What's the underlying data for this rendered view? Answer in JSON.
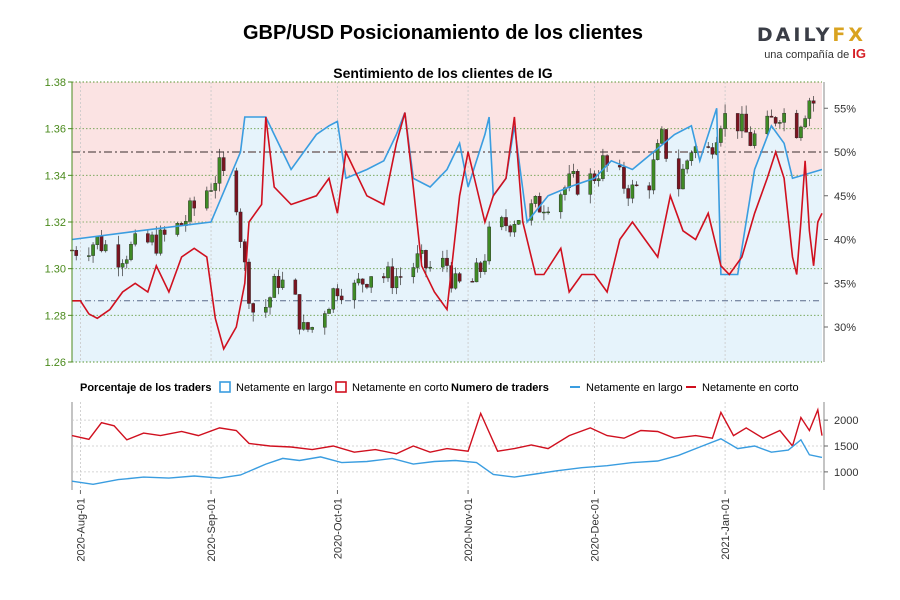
{
  "title": "GBP/USD Posicionamiento de los clientes",
  "subtitle": "Sentimiento de los clientes de IG",
  "logo": {
    "word_main": "DAILY",
    "word_fx": "FX",
    "tagline": "una compañía de",
    "brand": "IG"
  },
  "colors": {
    "long": "#3a9de0",
    "short": "#d0101f",
    "long_fill": "#e6f3fb",
    "short_fill": "#fbe3e3",
    "candle_up": "#3f8a25",
    "candle_down": "#7a1420",
    "left_axis": "#4a8a1c",
    "grid": "#c8c8c8"
  },
  "legend": {
    "pct_title": "Porcentaje de los traders",
    "pct_long": "Netamente en largo",
    "pct_short": "Netamente en corto",
    "num_title": "Numero de traders",
    "num_long": "Netamente en largo",
    "num_short": "Netamente en corto"
  },
  "chart_data": {
    "type": "line",
    "x_range": [
      "2020-07-30",
      "2021-01-24"
    ],
    "x_ticks": [
      "2020-Aug-01",
      "2020-Sep-01",
      "2020-Oct-01",
      "2020-Nov-01",
      "2020-Dec-01",
      "2021-Jan-01"
    ],
    "price_axis": {
      "ticks": [
        "1.26",
        "1.28",
        "1.30",
        "1.32",
        "1.34",
        "1.36",
        "1.38"
      ],
      "ylim": [
        1.26,
        1.38
      ]
    },
    "percent_axis": {
      "ticks": [
        "30%",
        "35%",
        "40%",
        "45%",
        "50%",
        "55%"
      ],
      "ylim": [
        26,
        58
      ]
    },
    "count_axis": {
      "ticks": [
        "1000",
        "1500",
        "2000"
      ],
      "ylim": [
        650,
        2350
      ]
    },
    "reference_lines": {
      "dashed_percent": 50,
      "dashdot_percent": 33
    },
    "price_close": [
      [
        "2020-07-30",
        1.308
      ],
      [
        "2020-08-05",
        1.312
      ],
      [
        "2020-08-10",
        1.306
      ],
      [
        "2020-08-15",
        1.31
      ],
      [
        "2020-08-20",
        1.312
      ],
      [
        "2020-08-25",
        1.319
      ],
      [
        "2020-08-28",
        1.326
      ],
      [
        "2020-08-31",
        1.334
      ],
      [
        "2020-09-03",
        1.342
      ],
      [
        "2020-09-07",
        1.33
      ],
      [
        "2020-09-09",
        1.3
      ],
      [
        "2020-09-11",
        1.282
      ],
      [
        "2020-09-14",
        1.284
      ],
      [
        "2020-09-17",
        1.296
      ],
      [
        "2020-09-21",
        1.285
      ],
      [
        "2020-09-23",
        1.273
      ],
      [
        "2020-09-25",
        1.275
      ],
      [
        "2020-09-28",
        1.284
      ],
      [
        "2020-10-01",
        1.293
      ],
      [
        "2020-10-05",
        1.291
      ],
      [
        "2020-10-09",
        1.299
      ],
      [
        "2020-10-13",
        1.296
      ],
      [
        "2020-10-16",
        1.297
      ],
      [
        "2020-10-20",
        1.303
      ],
      [
        "2020-10-23",
        1.3
      ],
      [
        "2020-10-27",
        1.302
      ],
      [
        "2020-10-29",
        1.292
      ],
      [
        "2020-11-02",
        1.294
      ],
      [
        "2020-11-04",
        1.3
      ],
      [
        "2020-11-06",
        1.313
      ],
      [
        "2020-11-09",
        1.318
      ],
      [
        "2020-11-12",
        1.322
      ],
      [
        "2020-11-16",
        1.325
      ],
      [
        "2020-11-20",
        1.33
      ],
      [
        "2020-11-25",
        1.336
      ],
      [
        "2020-11-30",
        1.338
      ],
      [
        "2020-12-03",
        1.345
      ],
      [
        "2020-12-07",
        1.338
      ],
      [
        "2020-12-10",
        1.333
      ],
      [
        "2020-12-14",
        1.338
      ],
      [
        "2020-12-17",
        1.355
      ],
      [
        "2020-12-21",
        1.336
      ],
      [
        "2020-12-24",
        1.352
      ],
      [
        "2020-12-28",
        1.35
      ],
      [
        "2020-12-31",
        1.365
      ],
      [
        "2021-01-04",
        1.363
      ],
      [
        "2021-01-07",
        1.355
      ],
      [
        "2021-01-11",
        1.36
      ],
      [
        "2021-01-14",
        1.368
      ],
      [
        "2021-01-18",
        1.361
      ],
      [
        "2021-01-21",
        1.373
      ],
      [
        "2021-01-24",
        1.368
      ]
    ],
    "series": [
      {
        "name": "Netamente en largo",
        "measure": "percent",
        "points": [
          [
            "2020-07-30",
            40
          ],
          [
            "2020-08-15",
            41
          ],
          [
            "2020-09-01",
            42
          ],
          [
            "2020-09-08",
            50
          ],
          [
            "2020-09-09",
            54
          ],
          [
            "2020-09-14",
            54
          ],
          [
            "2020-09-16",
            52
          ],
          [
            "2020-09-20",
            48
          ],
          [
            "2020-09-26",
            52
          ],
          [
            "2020-09-29",
            53
          ],
          [
            "2020-10-01",
            53.5
          ],
          [
            "2020-10-03",
            47
          ],
          [
            "2020-10-08",
            48
          ],
          [
            "2020-10-12",
            49
          ],
          [
            "2020-10-15",
            52
          ],
          [
            "2020-10-17",
            54.5
          ],
          [
            "2020-10-19",
            47
          ],
          [
            "2020-10-23",
            46
          ],
          [
            "2020-10-27",
            48
          ],
          [
            "2020-10-30",
            51
          ],
          [
            "2020-11-01",
            46
          ],
          [
            "2020-11-05",
            52
          ],
          [
            "2020-11-06",
            54
          ],
          [
            "2020-11-07",
            45
          ],
          [
            "2020-11-10",
            47
          ],
          [
            "2020-11-12",
            53
          ],
          [
            "2020-11-15",
            42
          ],
          [
            "2020-11-20",
            45
          ],
          [
            "2020-11-25",
            46
          ],
          [
            "2020-12-01",
            47
          ],
          [
            "2020-12-05",
            49
          ],
          [
            "2020-12-10",
            48
          ],
          [
            "2020-12-15",
            50
          ],
          [
            "2020-12-20",
            52
          ],
          [
            "2020-12-24",
            53
          ],
          [
            "2020-12-26",
            49
          ],
          [
            "2020-12-30",
            55
          ],
          [
            "2020-12-31",
            36
          ],
          [
            "2021-01-04",
            36
          ],
          [
            "2021-01-08",
            48
          ],
          [
            "2021-01-12",
            53
          ],
          [
            "2021-01-15",
            51
          ],
          [
            "2021-01-17",
            47
          ],
          [
            "2021-01-24",
            48
          ]
        ]
      },
      {
        "name": "Netamente en corto",
        "measure": "percent",
        "points": [
          [
            "2020-07-30",
            33
          ],
          [
            "2020-08-01",
            33
          ],
          [
            "2020-08-03",
            31.5
          ],
          [
            "2020-08-05",
            31
          ],
          [
            "2020-08-08",
            32
          ],
          [
            "2020-08-11",
            34
          ],
          [
            "2020-08-14",
            35
          ],
          [
            "2020-08-17",
            34
          ],
          [
            "2020-08-19",
            37
          ],
          [
            "2020-08-22",
            34
          ],
          [
            "2020-08-25",
            38
          ],
          [
            "2020-08-28",
            39
          ],
          [
            "2020-08-31",
            38
          ],
          [
            "2020-09-02",
            31
          ],
          [
            "2020-09-04",
            27.5
          ],
          [
            "2020-09-07",
            30
          ],
          [
            "2020-09-09",
            35
          ],
          [
            "2020-09-10",
            42
          ],
          [
            "2020-09-13",
            44
          ],
          [
            "2020-09-14",
            54
          ],
          [
            "2020-09-16",
            46
          ],
          [
            "2020-09-20",
            44
          ],
          [
            "2020-09-26",
            45
          ],
          [
            "2020-09-29",
            47
          ],
          [
            "2020-10-01",
            43
          ],
          [
            "2020-10-03",
            50
          ],
          [
            "2020-10-08",
            45
          ],
          [
            "2020-10-12",
            44
          ],
          [
            "2020-10-15",
            51
          ],
          [
            "2020-10-17",
            54.5
          ],
          [
            "2020-10-19",
            46
          ],
          [
            "2020-10-21",
            37
          ],
          [
            "2020-10-24",
            34
          ],
          [
            "2020-10-27",
            32
          ],
          [
            "2020-10-30",
            45
          ],
          [
            "2020-11-01",
            50
          ],
          [
            "2020-11-03",
            46
          ],
          [
            "2020-11-05",
            42
          ],
          [
            "2020-11-07",
            45
          ],
          [
            "2020-11-10",
            47
          ],
          [
            "2020-11-12",
            54
          ],
          [
            "2020-11-14",
            42
          ],
          [
            "2020-11-17",
            36
          ],
          [
            "2020-11-19",
            36
          ],
          [
            "2020-11-23",
            39
          ],
          [
            "2020-11-25",
            34
          ],
          [
            "2020-11-28",
            36
          ],
          [
            "2020-12-01",
            36
          ],
          [
            "2020-12-04",
            34
          ],
          [
            "2020-12-07",
            40
          ],
          [
            "2020-12-10",
            42
          ],
          [
            "2020-12-13",
            40
          ],
          [
            "2020-12-16",
            38
          ],
          [
            "2020-12-19",
            45
          ],
          [
            "2020-12-22",
            41
          ],
          [
            "2020-12-25",
            40
          ],
          [
            "2020-12-28",
            43
          ],
          [
            "2020-12-31",
            37
          ],
          [
            "2021-01-02",
            36
          ],
          [
            "2021-01-05",
            38
          ],
          [
            "2021-01-08",
            43
          ],
          [
            "2021-01-11",
            47
          ],
          [
            "2021-01-13",
            50
          ],
          [
            "2021-01-15",
            47
          ],
          [
            "2021-01-17",
            38
          ],
          [
            "2021-01-18",
            36
          ],
          [
            "2021-01-19",
            42
          ],
          [
            "2021-01-20",
            49
          ],
          [
            "2021-01-21",
            41
          ],
          [
            "2021-01-22",
            37
          ],
          [
            "2021-01-23",
            42
          ],
          [
            "2021-01-24",
            43
          ]
        ]
      },
      {
        "name": "Netamente en largo",
        "measure": "count",
        "points": [
          [
            "2020-07-30",
            820
          ],
          [
            "2020-08-04",
            760
          ],
          [
            "2020-08-10",
            850
          ],
          [
            "2020-08-16",
            900
          ],
          [
            "2020-08-22",
            880
          ],
          [
            "2020-08-28",
            920
          ],
          [
            "2020-09-03",
            880
          ],
          [
            "2020-09-08",
            940
          ],
          [
            "2020-09-14",
            1150
          ],
          [
            "2020-09-18",
            1260
          ],
          [
            "2020-09-22",
            1220
          ],
          [
            "2020-09-27",
            1290
          ],
          [
            "2020-10-02",
            1180
          ],
          [
            "2020-10-08",
            1200
          ],
          [
            "2020-10-14",
            1260
          ],
          [
            "2020-10-19",
            1150
          ],
          [
            "2020-10-24",
            1200
          ],
          [
            "2020-10-29",
            1220
          ],
          [
            "2020-11-03",
            1180
          ],
          [
            "2020-11-07",
            950
          ],
          [
            "2020-11-12",
            900
          ],
          [
            "2020-11-17",
            960
          ],
          [
            "2020-11-22",
            1020
          ],
          [
            "2020-11-28",
            1080
          ],
          [
            "2020-12-04",
            1120
          ],
          [
            "2020-12-10",
            1180
          ],
          [
            "2020-12-16",
            1210
          ],
          [
            "2020-12-21",
            1320
          ],
          [
            "2020-12-26",
            1480
          ],
          [
            "2020-12-31",
            1640
          ],
          [
            "2021-01-04",
            1450
          ],
          [
            "2021-01-08",
            1500
          ],
          [
            "2021-01-12",
            1380
          ],
          [
            "2021-01-16",
            1420
          ],
          [
            "2021-01-19",
            1620
          ],
          [
            "2021-01-21",
            1330
          ],
          [
            "2021-01-24",
            1280
          ]
        ]
      },
      {
        "name": "Netamente en corto",
        "measure": "count",
        "points": [
          [
            "2020-07-30",
            1700
          ],
          [
            "2020-08-03",
            1630
          ],
          [
            "2020-08-06",
            1950
          ],
          [
            "2020-08-09",
            1890
          ],
          [
            "2020-08-12",
            1620
          ],
          [
            "2020-08-16",
            1750
          ],
          [
            "2020-08-20",
            1700
          ],
          [
            "2020-08-25",
            1780
          ],
          [
            "2020-08-29",
            1700
          ],
          [
            "2020-09-03",
            1850
          ],
          [
            "2020-09-07",
            1800
          ],
          [
            "2020-09-10",
            1550
          ],
          [
            "2020-09-15",
            1500
          ],
          [
            "2020-09-20",
            1480
          ],
          [
            "2020-09-25",
            1430
          ],
          [
            "2020-09-30",
            1500
          ],
          [
            "2020-10-05",
            1380
          ],
          [
            "2020-10-10",
            1430
          ],
          [
            "2020-10-15",
            1350
          ],
          [
            "2020-10-19",
            1500
          ],
          [
            "2020-10-23",
            1380
          ],
          [
            "2020-10-27",
            1450
          ],
          [
            "2020-11-01",
            1400
          ],
          [
            "2020-11-04",
            2130
          ],
          [
            "2020-11-08",
            1400
          ],
          [
            "2020-11-12",
            1450
          ],
          [
            "2020-11-16",
            1520
          ],
          [
            "2020-11-20",
            1450
          ],
          [
            "2020-11-25",
            1700
          ],
          [
            "2020-11-30",
            1850
          ],
          [
            "2020-12-04",
            1700
          ],
          [
            "2020-12-08",
            1650
          ],
          [
            "2020-12-12",
            1800
          ],
          [
            "2020-12-16",
            1780
          ],
          [
            "2020-12-20",
            1650
          ],
          [
            "2020-12-25",
            1700
          ],
          [
            "2020-12-29",
            1650
          ],
          [
            "2020-12-31",
            2150
          ],
          [
            "2021-01-03",
            1700
          ],
          [
            "2021-01-06",
            1850
          ],
          [
            "2021-01-10",
            1650
          ],
          [
            "2021-01-14",
            1800
          ],
          [
            "2021-01-17",
            1500
          ],
          [
            "2021-01-19",
            2050
          ],
          [
            "2021-01-21",
            1800
          ],
          [
            "2021-01-23",
            2200
          ],
          [
            "2021-01-24",
            1700
          ]
        ]
      }
    ]
  }
}
